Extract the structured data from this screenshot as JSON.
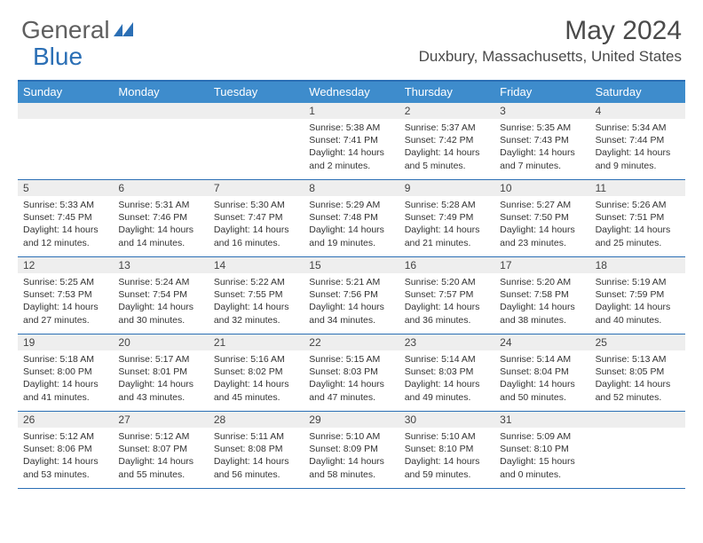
{
  "brand": {
    "part1": "General",
    "part2": "Blue",
    "accent": "#2b6fb5",
    "grey": "#5f5f5f"
  },
  "title": "May 2024",
  "location": "Duxbury, Massachusetts, United States",
  "dow_bg": "#3e8ccc",
  "daynum_bg": "#eeeeee",
  "border_color": "#2b6fb5",
  "daysOfWeek": [
    "Sunday",
    "Monday",
    "Tuesday",
    "Wednesday",
    "Thursday",
    "Friday",
    "Saturday"
  ],
  "weeks": [
    [
      {
        "n": "",
        "sr": "",
        "ss": "",
        "dl": ""
      },
      {
        "n": "",
        "sr": "",
        "ss": "",
        "dl": ""
      },
      {
        "n": "",
        "sr": "",
        "ss": "",
        "dl": ""
      },
      {
        "n": "1",
        "sr": "5:38 AM",
        "ss": "7:41 PM",
        "dl": "14 hours and 2 minutes."
      },
      {
        "n": "2",
        "sr": "5:37 AM",
        "ss": "7:42 PM",
        "dl": "14 hours and 5 minutes."
      },
      {
        "n": "3",
        "sr": "5:35 AM",
        "ss": "7:43 PM",
        "dl": "14 hours and 7 minutes."
      },
      {
        "n": "4",
        "sr": "5:34 AM",
        "ss": "7:44 PM",
        "dl": "14 hours and 9 minutes."
      }
    ],
    [
      {
        "n": "5",
        "sr": "5:33 AM",
        "ss": "7:45 PM",
        "dl": "14 hours and 12 minutes."
      },
      {
        "n": "6",
        "sr": "5:31 AM",
        "ss": "7:46 PM",
        "dl": "14 hours and 14 minutes."
      },
      {
        "n": "7",
        "sr": "5:30 AM",
        "ss": "7:47 PM",
        "dl": "14 hours and 16 minutes."
      },
      {
        "n": "8",
        "sr": "5:29 AM",
        "ss": "7:48 PM",
        "dl": "14 hours and 19 minutes."
      },
      {
        "n": "9",
        "sr": "5:28 AM",
        "ss": "7:49 PM",
        "dl": "14 hours and 21 minutes."
      },
      {
        "n": "10",
        "sr": "5:27 AM",
        "ss": "7:50 PM",
        "dl": "14 hours and 23 minutes."
      },
      {
        "n": "11",
        "sr": "5:26 AM",
        "ss": "7:51 PM",
        "dl": "14 hours and 25 minutes."
      }
    ],
    [
      {
        "n": "12",
        "sr": "5:25 AM",
        "ss": "7:53 PM",
        "dl": "14 hours and 27 minutes."
      },
      {
        "n": "13",
        "sr": "5:24 AM",
        "ss": "7:54 PM",
        "dl": "14 hours and 30 minutes."
      },
      {
        "n": "14",
        "sr": "5:22 AM",
        "ss": "7:55 PM",
        "dl": "14 hours and 32 minutes."
      },
      {
        "n": "15",
        "sr": "5:21 AM",
        "ss": "7:56 PM",
        "dl": "14 hours and 34 minutes."
      },
      {
        "n": "16",
        "sr": "5:20 AM",
        "ss": "7:57 PM",
        "dl": "14 hours and 36 minutes."
      },
      {
        "n": "17",
        "sr": "5:20 AM",
        "ss": "7:58 PM",
        "dl": "14 hours and 38 minutes."
      },
      {
        "n": "18",
        "sr": "5:19 AM",
        "ss": "7:59 PM",
        "dl": "14 hours and 40 minutes."
      }
    ],
    [
      {
        "n": "19",
        "sr": "5:18 AM",
        "ss": "8:00 PM",
        "dl": "14 hours and 41 minutes."
      },
      {
        "n": "20",
        "sr": "5:17 AM",
        "ss": "8:01 PM",
        "dl": "14 hours and 43 minutes."
      },
      {
        "n": "21",
        "sr": "5:16 AM",
        "ss": "8:02 PM",
        "dl": "14 hours and 45 minutes."
      },
      {
        "n": "22",
        "sr": "5:15 AM",
        "ss": "8:03 PM",
        "dl": "14 hours and 47 minutes."
      },
      {
        "n": "23",
        "sr": "5:14 AM",
        "ss": "8:03 PM",
        "dl": "14 hours and 49 minutes."
      },
      {
        "n": "24",
        "sr": "5:14 AM",
        "ss": "8:04 PM",
        "dl": "14 hours and 50 minutes."
      },
      {
        "n": "25",
        "sr": "5:13 AM",
        "ss": "8:05 PM",
        "dl": "14 hours and 52 minutes."
      }
    ],
    [
      {
        "n": "26",
        "sr": "5:12 AM",
        "ss": "8:06 PM",
        "dl": "14 hours and 53 minutes."
      },
      {
        "n": "27",
        "sr": "5:12 AM",
        "ss": "8:07 PM",
        "dl": "14 hours and 55 minutes."
      },
      {
        "n": "28",
        "sr": "5:11 AM",
        "ss": "8:08 PM",
        "dl": "14 hours and 56 minutes."
      },
      {
        "n": "29",
        "sr": "5:10 AM",
        "ss": "8:09 PM",
        "dl": "14 hours and 58 minutes."
      },
      {
        "n": "30",
        "sr": "5:10 AM",
        "ss": "8:10 PM",
        "dl": "14 hours and 59 minutes."
      },
      {
        "n": "31",
        "sr": "5:09 AM",
        "ss": "8:10 PM",
        "dl": "15 hours and 0 minutes."
      },
      {
        "n": "",
        "sr": "",
        "ss": "",
        "dl": ""
      }
    ]
  ],
  "labels": {
    "sunrise": "Sunrise:",
    "sunset": "Sunset:",
    "daylight": "Daylight:"
  }
}
